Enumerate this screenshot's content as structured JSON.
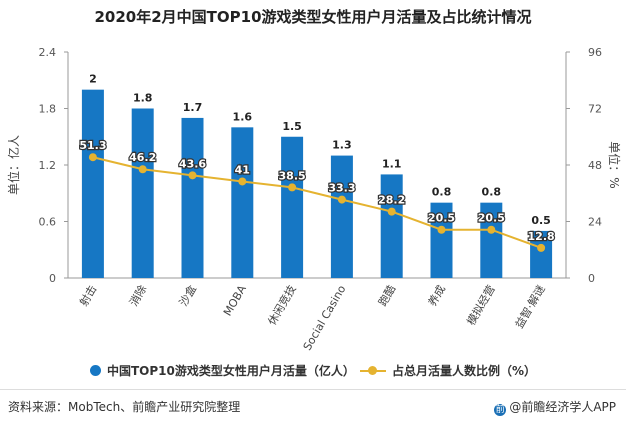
{
  "title": "2020年2月中国TOP10游戏类型女性用户月活量及占比统计情况",
  "colors": {
    "bar": "#1677c4",
    "line": "#e5b330",
    "axis": "#999999",
    "text": "#333333"
  },
  "chart_data": {
    "type": "bar",
    "categories": [
      "射击",
      "消除",
      "沙盒",
      "MOBA",
      "休闲竞技",
      "Social Casino",
      "跑酷",
      "养成",
      "模拟经营",
      "益智·解谜"
    ],
    "series": [
      {
        "name": "中国TOP10游戏类型女性用户月活量（亿人）",
        "type": "bar",
        "axis": "left",
        "values": [
          2,
          1.8,
          1.7,
          1.6,
          1.5,
          1.3,
          1.1,
          0.8,
          0.8,
          0.5
        ],
        "labels": [
          "2",
          "1.8",
          "1.7",
          "1.6",
          "1.5",
          "1.3",
          "1.1",
          "0.8",
          "0.8",
          "0.5"
        ]
      },
      {
        "name": "占总月活量人数比例（%）",
        "type": "line",
        "axis": "right",
        "values": [
          51.3,
          46.2,
          43.6,
          41,
          38.5,
          33.3,
          28.2,
          20.5,
          20.5,
          12.8
        ],
        "labels": [
          "51.3",
          "46.2",
          "43.6",
          "41",
          "38.5",
          "33.3",
          "28.2",
          "20.5",
          "20.5",
          "12.8"
        ]
      }
    ],
    "y_left": {
      "label": "单位：亿人",
      "ylim": [
        0,
        2.4
      ],
      "ticks": [
        "0",
        "0.6",
        "1.2",
        "1.8",
        "2.4"
      ]
    },
    "y_right": {
      "label": "单位：%",
      "ylim": [
        0,
        96
      ],
      "ticks": [
        "0",
        "24",
        "48",
        "72",
        "96"
      ]
    },
    "grid": false,
    "legend_position": "bottom"
  },
  "legend": {
    "bar_label": "中国TOP10游戏类型女性用户月活量（亿人）",
    "line_label": "占总月活量人数比例（%）"
  },
  "footer": {
    "source": "资料来源：MobTech、前瞻产业研究院整理",
    "brand": "@前瞻经济学人APP"
  }
}
